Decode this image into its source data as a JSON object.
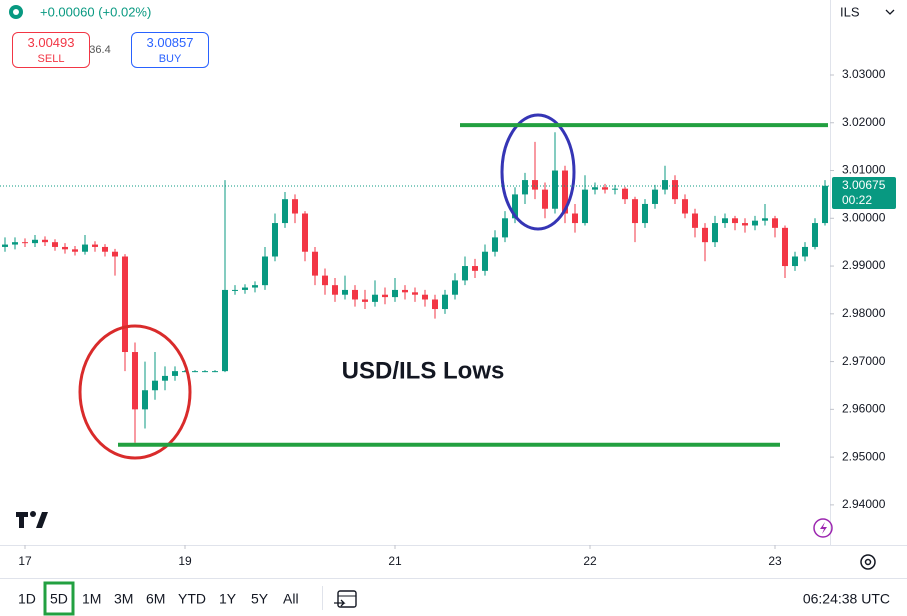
{
  "header": {
    "change": "+0.00060 (+0.02%)",
    "sell_price": "3.00493",
    "sell_label": "SELL",
    "spread": "36.4",
    "buy_price": "3.00857",
    "buy_label": "BUY",
    "currency": "ILS"
  },
  "toolbar": {
    "ranges": [
      "1D",
      "5D",
      "1M",
      "3M",
      "6M",
      "YTD",
      "1Y",
      "5Y",
      "All"
    ],
    "selected": "5D",
    "clock": "06:24:38 UTC"
  },
  "chart_data": {
    "type": "candlestick",
    "annotation": "USD/ILS Lows",
    "xlim": [
      -0.5,
      82.5
    ],
    "xticks": [
      {
        "value": 2,
        "label": "17"
      },
      {
        "value": 18,
        "label": "19"
      },
      {
        "value": 39,
        "label": "21"
      },
      {
        "value": 58.5,
        "label": "22"
      },
      {
        "value": 77,
        "label": "23"
      }
    ],
    "ylim": [
      2.9316,
      3.0457
    ],
    "yticks": [
      {
        "value": 3.03,
        "label": "3.03000"
      },
      {
        "value": 3.02,
        "label": "3.02000"
      },
      {
        "value": 3.01,
        "label": "3.01000"
      },
      {
        "value": 3.0,
        "label": "3.00000"
      },
      {
        "value": 2.99,
        "label": "2.99000"
      },
      {
        "value": 2.98,
        "label": "2.98000"
      },
      {
        "value": 2.97,
        "label": "2.97000"
      },
      {
        "value": 2.96,
        "label": "2.96000"
      },
      {
        "value": 2.95,
        "label": "2.95000"
      },
      {
        "value": 2.94,
        "label": "2.94000"
      }
    ],
    "up_color": "#089981",
    "down_color": "#f23645",
    "last_price": {
      "value": 3.00675,
      "label": "3.00675"
    },
    "countdown": "00:22",
    "levels": [
      {
        "value": 3.0195,
        "x": [
          45.5,
          82.3
        ],
        "color": "#22a040"
      },
      {
        "value": 2.9526,
        "x": [
          11.3,
          77.5
        ],
        "color": "#22a040"
      }
    ],
    "series": [
      {
        "ohlc": [
          [
            2.994,
            2.996,
            2.993,
            2.9945
          ],
          [
            2.9945,
            2.996,
            2.9935,
            2.995
          ],
          [
            2.995,
            2.9958,
            2.994,
            2.9948
          ],
          [
            2.9948,
            2.9965,
            2.994,
            2.9955
          ],
          [
            2.9955,
            2.9962,
            2.9942,
            2.995
          ],
          [
            2.995,
            2.9956,
            2.9932,
            2.994
          ],
          [
            2.994,
            2.9948,
            2.9926,
            2.9935
          ],
          [
            2.9935,
            2.9942,
            2.9922,
            2.993
          ],
          [
            2.993,
            2.9965,
            2.9924,
            2.9945
          ],
          [
            2.9945,
            2.9952,
            2.993,
            2.994
          ],
          [
            2.994,
            2.9946,
            2.992,
            2.993
          ],
          [
            2.993,
            2.9936,
            2.988,
            2.992
          ],
          [
            2.992,
            2.9925,
            2.968,
            2.972
          ],
          [
            2.972,
            2.974,
            2.953,
            2.96
          ],
          [
            2.96,
            2.97,
            2.956,
            2.964
          ],
          [
            2.964,
            2.972,
            2.962,
            2.966
          ],
          [
            2.966,
            2.969,
            2.964,
            2.967
          ],
          [
            2.967,
            2.969,
            2.966,
            2.968
          ],
          [
            2.968,
            2.9682,
            2.9678,
            2.968
          ],
          [
            2.968,
            2.9682,
            2.9678,
            2.968
          ],
          [
            2.968,
            2.9682,
            2.9678,
            2.968
          ],
          [
            2.968,
            2.9682,
            2.9678,
            2.968
          ],
          [
            2.968,
            3.008,
            2.9678,
            2.985
          ],
          [
            2.985,
            2.986,
            2.984,
            2.985
          ],
          [
            2.985,
            2.9862,
            2.9842,
            2.9855
          ],
          [
            2.9855,
            2.9868,
            2.9845,
            2.986
          ],
          [
            2.986,
            2.994,
            2.985,
            2.992
          ],
          [
            2.992,
            3.001,
            2.991,
            2.999
          ],
          [
            2.999,
            3.0055,
            2.998,
            3.004
          ],
          [
            3.004,
            3.005,
            2.999,
            3.001
          ],
          [
            3.001,
            3.0015,
            2.991,
            2.993
          ],
          [
            2.993,
            2.994,
            2.986,
            2.988
          ],
          [
            2.988,
            2.9895,
            2.984,
            2.986
          ],
          [
            2.986,
            2.9875,
            2.9825,
            2.984
          ],
          [
            2.984,
            2.988,
            2.983,
            2.985
          ],
          [
            2.985,
            2.986,
            2.9815,
            2.983
          ],
          [
            2.983,
            2.985,
            2.981,
            2.9825
          ],
          [
            2.9825,
            2.987,
            2.9815,
            2.984
          ],
          [
            2.984,
            2.9855,
            2.982,
            2.9835
          ],
          [
            2.9835,
            2.9875,
            2.9825,
            2.985
          ],
          [
            2.985,
            2.986,
            2.983,
            2.9845
          ],
          [
            2.9845,
            2.9855,
            2.9825,
            2.984
          ],
          [
            2.984,
            2.985,
            2.9815,
            2.983
          ],
          [
            2.983,
            2.984,
            2.979,
            2.981
          ],
          [
            2.981,
            2.985,
            2.98,
            2.984
          ],
          [
            2.984,
            2.9885,
            2.983,
            2.987
          ],
          [
            2.987,
            2.992,
            2.986,
            2.99
          ],
          [
            2.99,
            2.9915,
            2.9875,
            2.989
          ],
          [
            2.989,
            2.9945,
            2.988,
            2.993
          ],
          [
            2.993,
            2.9975,
            2.992,
            2.996
          ],
          [
            2.996,
            3.0015,
            2.995,
            3.0
          ],
          [
            3.0,
            3.0065,
            2.999,
            3.005
          ],
          [
            3.005,
            3.0095,
            3.003,
            3.008
          ],
          [
            3.008,
            3.016,
            3.004,
            3.006
          ],
          [
            3.006,
            3.0075,
            3.0,
            3.002
          ],
          [
            3.002,
            3.018,
            3.001,
            3.01
          ],
          [
            3.01,
            3.011,
            2.999,
            3.001
          ],
          [
            3.001,
            3.003,
            2.997,
            2.999
          ],
          [
            2.999,
            3.009,
            2.9985,
            3.006
          ],
          [
            3.006,
            3.0075,
            3.005,
            3.0065
          ],
          [
            3.0065,
            3.0072,
            3.0052,
            3.006
          ],
          [
            3.006,
            3.007,
            3.005,
            3.0062
          ],
          [
            3.0062,
            3.0066,
            3.003,
            3.004
          ],
          [
            3.004,
            3.0045,
            2.995,
            2.999
          ],
          [
            2.999,
            3.004,
            2.998,
            3.003
          ],
          [
            3.003,
            3.007,
            3.002,
            3.006
          ],
          [
            3.006,
            3.011,
            3.005,
            3.008
          ],
          [
            3.008,
            3.009,
            3.003,
            3.004
          ],
          [
            3.004,
            3.005,
            3.0,
            3.001
          ],
          [
            3.001,
            3.002,
            2.996,
            2.998
          ],
          [
            2.998,
            2.999,
            2.991,
            2.995
          ],
          [
            2.995,
            3.0005,
            2.994,
            2.999
          ],
          [
            2.999,
            3.001,
            2.998,
            3.0
          ],
          [
            3.0,
            3.0005,
            2.9975,
            2.999
          ],
          [
            2.999,
            3.0,
            2.997,
            2.9985
          ],
          [
            2.9985,
            3.0005,
            2.9975,
            2.9995
          ],
          [
            2.9995,
            3.003,
            2.9985,
            3.0
          ],
          [
            3.0,
            3.0005,
            2.996,
            2.998
          ],
          [
            2.998,
            2.9985,
            2.9875,
            2.99
          ],
          [
            2.99,
            2.993,
            2.989,
            2.992
          ],
          [
            2.992,
            2.995,
            2.991,
            2.994
          ],
          [
            2.994,
            3.0,
            2.9935,
            2.999
          ],
          [
            2.999,
            3.008,
            2.9985,
            3.0068
          ]
        ]
      }
    ]
  }
}
